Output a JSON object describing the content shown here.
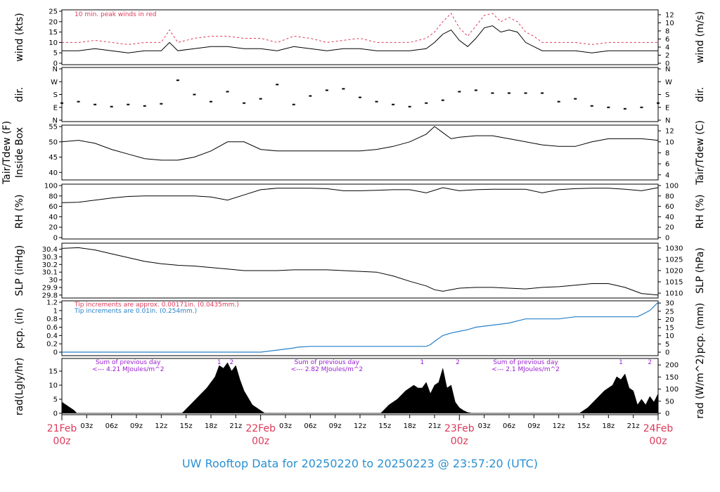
{
  "title": "UW Rooftop Data for 20250220  to  20250223 @ 23:57:20  (UTC)",
  "colors": {
    "red": "#dc3a5a",
    "blue": "#2a80c8",
    "purple": "#9a1fd0",
    "title": "#2a90d0",
    "black": "#000000"
  },
  "x_axis": {
    "range_hours": [
      0,
      72
    ],
    "hour_ticks": [
      {
        "h": 3,
        "label": "03z"
      },
      {
        "h": 6,
        "label": "06z"
      },
      {
        "h": 9,
        "label": "09z"
      },
      {
        "h": 12,
        "label": "12z"
      },
      {
        "h": 15,
        "label": "15z"
      },
      {
        "h": 18,
        "label": "18z"
      },
      {
        "h": 21,
        "label": "21z"
      },
      {
        "h": 27,
        "label": "03z"
      },
      {
        "h": 30,
        "label": "06z"
      },
      {
        "h": 33,
        "label": "09z"
      },
      {
        "h": 36,
        "label": "12z"
      },
      {
        "h": 39,
        "label": "15z"
      },
      {
        "h": 42,
        "label": "18z"
      },
      {
        "h": 45,
        "label": "21z"
      },
      {
        "h": 51,
        "label": "03z"
      },
      {
        "h": 54,
        "label": "06z"
      },
      {
        "h": 57,
        "label": "09z"
      },
      {
        "h": 60,
        "label": "12z"
      },
      {
        "h": 63,
        "label": "15z"
      },
      {
        "h": 66,
        "label": "18z"
      },
      {
        "h": 69,
        "label": "21z"
      }
    ],
    "day_ticks": [
      {
        "h": 0,
        "day": "21Feb",
        "hour": "00z"
      },
      {
        "h": 24,
        "day": "22Feb",
        "hour": "00z"
      },
      {
        "h": 48,
        "day": "23Feb",
        "hour": "00z"
      },
      {
        "h": 72,
        "day": "24Feb",
        "hour": "00z"
      }
    ]
  },
  "annotations": {
    "wind_note": "10 min. peak winds in red",
    "tip1": "Tip increments are approx. 0.00171in. (0.0435mm.)",
    "tip2": "Tip increments are 0.01in. (0.254mm.)",
    "rad_notes": [
      {
        "h": 8,
        "line1": "Sum of previous day",
        "line2": "<--- 4.21 MJoules/m^2"
      },
      {
        "h": 32,
        "line1": "Sum of previous day",
        "line2": "<--- 2.82 MJoules/m^2"
      },
      {
        "h": 56,
        "line1": "Sum of previous day",
        "line2": "<--- 2.1 MJoules/m^2"
      }
    ],
    "rad_markers": [
      {
        "h": 19,
        "label": "1"
      },
      {
        "h": 20.5,
        "label": "2"
      },
      {
        "h": 43.5,
        "label": "1"
      },
      {
        "h": 47.8,
        "label": "2"
      },
      {
        "h": 67.5,
        "label": "1"
      },
      {
        "h": 71,
        "label": "2"
      }
    ]
  },
  "chart_data": [
    {
      "type": "line",
      "panel": "wind",
      "ylabel": "wind (kts)",
      "ylabel_right": "wind (m/s)",
      "ylim": [
        0,
        25
      ],
      "yticks": [
        0,
        5,
        10,
        15,
        20,
        25
      ],
      "ylim_right": [
        0,
        12.86
      ],
      "yticks_right": [
        0,
        2,
        4,
        6,
        8,
        10,
        12
      ],
      "series": [
        {
          "name": "wind",
          "x": [
            0,
            2,
            4,
            6,
            8,
            10,
            12,
            13,
            14,
            16,
            18,
            20,
            22,
            24,
            26,
            28,
            30,
            32,
            34,
            36,
            38,
            40,
            42,
            44,
            45,
            46,
            47,
            48,
            49,
            50,
            51,
            52,
            53,
            54,
            55,
            56,
            57,
            58,
            60,
            62,
            64,
            66,
            68,
            70,
            72
          ],
          "y": [
            6,
            6,
            7,
            6,
            5,
            6,
            6,
            10,
            6,
            7,
            8,
            8,
            7,
            7,
            6,
            8,
            7,
            6,
            7,
            7,
            6,
            6,
            6,
            7,
            10,
            14,
            16,
            11,
            8,
            12,
            17,
            18,
            15,
            16,
            15,
            10,
            8,
            6,
            6,
            6,
            5,
            6,
            6,
            6,
            6
          ]
        },
        {
          "name": "10 min. peak winds",
          "x": [
            0,
            2,
            4,
            6,
            8,
            10,
            12,
            13,
            14,
            16,
            18,
            20,
            22,
            24,
            26,
            28,
            30,
            32,
            34,
            36,
            38,
            40,
            42,
            44,
            45,
            46,
            47,
            48,
            49,
            50,
            51,
            52,
            53,
            54,
            55,
            56,
            57,
            58,
            60,
            62,
            64,
            66,
            68,
            70,
            72
          ],
          "y": [
            10,
            10,
            11,
            10,
            9,
            10,
            10,
            16,
            10,
            12,
            13,
            13,
            12,
            12,
            10,
            13,
            12,
            10,
            11,
            12,
            10,
            10,
            10,
            12,
            15,
            20,
            24,
            17,
            13,
            18,
            23,
            24,
            20,
            22,
            20,
            15,
            13,
            10,
            10,
            10,
            9,
            10,
            10,
            10,
            10
          ]
        }
      ]
    },
    {
      "type": "scatter",
      "panel": "dir",
      "ylabel": "dir.",
      "ylabel_right": "dir.",
      "ylim": [
        0,
        360
      ],
      "ytick_labels": [
        "N",
        "E",
        "S",
        "W",
        "N"
      ],
      "series": [
        {
          "x": [
            0,
            2,
            4,
            6,
            8,
            10,
            12,
            14,
            16,
            18,
            20,
            22,
            24,
            26,
            28,
            30,
            32,
            34,
            36,
            38,
            40,
            42,
            44,
            46,
            48,
            50,
            52,
            54,
            56,
            58,
            60,
            62,
            64,
            66,
            68,
            70,
            72
          ],
          "y": [
            120,
            130,
            110,
            95,
            110,
            100,
            115,
            280,
            180,
            130,
            200,
            120,
            150,
            250,
            110,
            170,
            210,
            220,
            160,
            130,
            110,
            95,
            120,
            140,
            200,
            210,
            190,
            190,
            190,
            190,
            130,
            150,
            100,
            90,
            80,
            90,
            120
          ]
        }
      ]
    },
    {
      "type": "line",
      "panel": "temp",
      "ylabel": "Tair/Tdew (F)",
      "ylabel2": "Inside Box",
      "ylabel_right": "Tair/Tdew (C)",
      "ylim": [
        38,
        55
      ],
      "yticks": [
        40,
        45,
        50,
        55
      ],
      "yticks_right": [
        4,
        6,
        8,
        10,
        12
      ],
      "series": [
        {
          "x": [
            0,
            2,
            4,
            6,
            8,
            10,
            12,
            14,
            16,
            18,
            20,
            22,
            24,
            26,
            28,
            30,
            32,
            34,
            36,
            38,
            40,
            42,
            44,
            45,
            46,
            47,
            48,
            50,
            52,
            54,
            56,
            58,
            60,
            62,
            64,
            66,
            68,
            70,
            72
          ],
          "y": [
            50,
            50.5,
            49.5,
            47.5,
            46,
            44.5,
            44,
            44,
            45,
            47,
            50,
            50,
            47.5,
            47,
            47,
            47,
            47,
            47,
            47,
            47.5,
            48.5,
            50,
            52.5,
            55,
            53,
            51,
            51.5,
            52,
            52,
            51,
            50,
            49,
            48.5,
            48.5,
            50,
            51,
            51,
            51,
            50.5
          ]
        }
      ]
    },
    {
      "type": "line",
      "panel": "rh",
      "ylabel": "RH (%)",
      "ylabel_right": "RH (%)",
      "ylim": [
        0,
        100
      ],
      "yticks": [
        0,
        20,
        40,
        60,
        80,
        100
      ],
      "series": [
        {
          "x": [
            0,
            2,
            4,
            6,
            8,
            10,
            12,
            14,
            16,
            18,
            20,
            22,
            24,
            26,
            28,
            30,
            32,
            34,
            36,
            38,
            40,
            42,
            44,
            46,
            48,
            50,
            52,
            54,
            56,
            58,
            60,
            62,
            64,
            66,
            68,
            70,
            72
          ],
          "y": [
            67,
            68,
            72,
            76,
            79,
            80,
            80,
            80,
            80,
            78,
            72,
            82,
            92,
            95,
            95,
            95,
            94,
            90,
            90,
            91,
            92,
            92,
            86,
            96,
            90,
            92,
            93,
            93,
            93,
            86,
            92,
            94,
            95,
            95,
            93,
            90,
            96
          ]
        }
      ]
    },
    {
      "type": "line",
      "panel": "slp",
      "ylabel": "SLP (inHg)",
      "ylabel_right": "SLP (hPa)",
      "ylim": [
        29.78,
        30.46
      ],
      "yticks": [
        29.8,
        29.9,
        30.0,
        30.1,
        30.2,
        30.3,
        30.4
      ],
      "yticks_right": [
        1010,
        1015,
        1020,
        1025,
        1030
      ],
      "series": [
        {
          "x": [
            0,
            2,
            4,
            6,
            8,
            10,
            12,
            14,
            16,
            18,
            20,
            22,
            24,
            26,
            28,
            30,
            32,
            34,
            36,
            38,
            40,
            42,
            44,
            45,
            46,
            48,
            50,
            52,
            54,
            56,
            58,
            60,
            62,
            64,
            66,
            68,
            70,
            72
          ],
          "y": [
            30.41,
            30.42,
            30.39,
            30.34,
            30.29,
            30.24,
            30.21,
            30.19,
            30.18,
            30.16,
            30.14,
            30.12,
            30.12,
            30.12,
            30.13,
            30.13,
            30.13,
            30.12,
            30.11,
            30.1,
            30.05,
            29.98,
            29.92,
            29.87,
            29.85,
            29.89,
            29.9,
            29.9,
            29.89,
            29.88,
            29.9,
            29.91,
            29.93,
            29.95,
            29.95,
            29.9,
            29.82,
            29.8
          ]
        }
      ]
    },
    {
      "type": "line",
      "panel": "pcp",
      "ylabel": "pcp. (in)",
      "ylabel_right": "pcp. (mm)",
      "ylim": [
        -0.05,
        1.2
      ],
      "yticks": [
        0.0,
        0.2,
        0.4,
        0.6,
        0.8,
        1.0,
        1.2
      ],
      "yticks_right": [
        0,
        5,
        10,
        15,
        20,
        25,
        30
      ],
      "series": [
        {
          "x": [
            0,
            24,
            26,
            28,
            28.5,
            30,
            34,
            40,
            44,
            44.5,
            45,
            46,
            47,
            48,
            49,
            50,
            52,
            54,
            56,
            60,
            62,
            64,
            66,
            68,
            69.5,
            70,
            71,
            71.5,
            72
          ],
          "y": [
            0,
            0,
            0.05,
            0.1,
            0.12,
            0.14,
            0.14,
            0.14,
            0.14,
            0.18,
            0.26,
            0.4,
            0.46,
            0.5,
            0.54,
            0.6,
            0.65,
            0.7,
            0.8,
            0.8,
            0.85,
            0.85,
            0.85,
            0.85,
            0.85,
            0.9,
            1.0,
            1.1,
            1.2
          ]
        }
      ]
    },
    {
      "type": "area",
      "panel": "rad",
      "ylabel": "rad(Lgly/hr)",
      "ylabel_right": "rad (W/m^2)",
      "ylim": [
        0,
        19
      ],
      "yticks": [
        0,
        5,
        10,
        15
      ],
      "yticks_right": [
        0,
        50,
        100,
        150,
        200
      ],
      "series": [
        {
          "x": [
            0,
            0.5,
            1,
            1.5,
            1.8,
            14.5,
            15.5,
            16.5,
            17.5,
            18.5,
            19,
            19.5,
            20,
            20.5,
            21,
            21.5,
            22,
            23,
            24,
            24.5,
            38.5,
            39.5,
            40.5,
            41.5,
            42.5,
            43,
            43.5,
            44,
            44.5,
            45,
            45.5,
            46,
            46.5,
            47,
            47.5,
            48,
            48.5,
            49,
            49.5,
            62.5,
            63.5,
            64.5,
            65.5,
            66.5,
            67,
            67.5,
            68,
            68.5,
            69,
            69.5,
            70,
            70.5,
            71,
            71.5,
            72
          ],
          "y": [
            4,
            3,
            2,
            1,
            0,
            0,
            3,
            6,
            9,
            13,
            17,
            16,
            18,
            15,
            17,
            12,
            8,
            3,
            1,
            0,
            0,
            3,
            5,
            8,
            10,
            9,
            9,
            11,
            7,
            10,
            11,
            16,
            9,
            10,
            4,
            2,
            1,
            0.3,
            0,
            0,
            2,
            5,
            8,
            10,
            13,
            12,
            14,
            9,
            8,
            3,
            5,
            3,
            6,
            4,
            7
          ]
        }
      ]
    }
  ]
}
